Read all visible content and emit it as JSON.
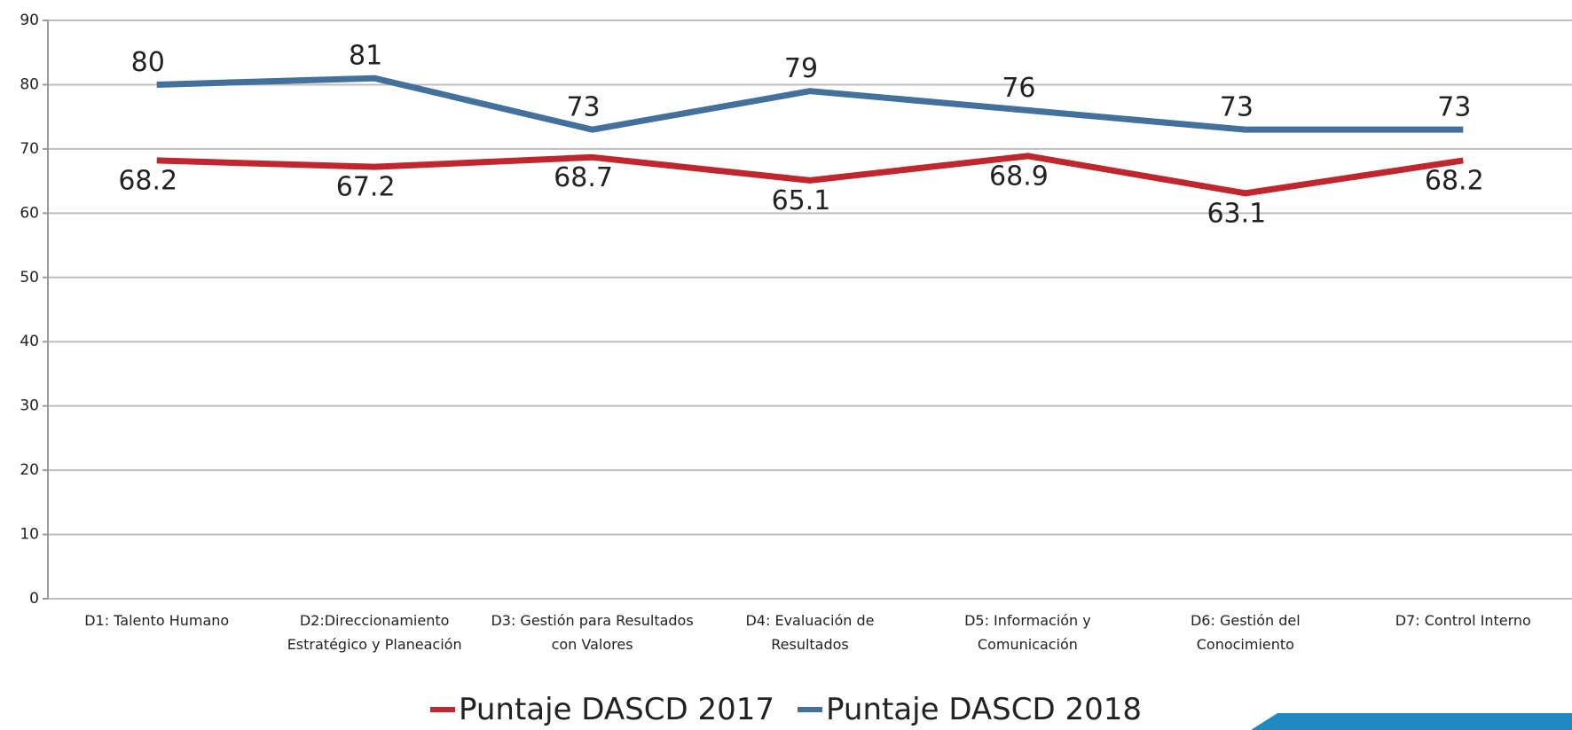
{
  "chart_data": {
    "type": "line",
    "categories": [
      "D1: Talento Humano",
      "D2:Direccionamiento Estratégico y Planeación",
      "D3: Gestión para Resultados con Valores",
      "D4: Evaluación de Resultados",
      "D5: Información y Comunicación",
      "D6: Gestión del Conocimiento",
      "D7: Control Interno"
    ],
    "series": [
      {
        "name": "Puntaje DASCD 2017",
        "color": "#c0262d",
        "values": [
          68.2,
          67.2,
          68.7,
          65.1,
          68.9,
          63.1,
          68.2
        ]
      },
      {
        "name": "Puntaje DASCD 2018",
        "color": "#44709c",
        "values": [
          80,
          81,
          73,
          79,
          76,
          73,
          73
        ]
      }
    ],
    "ylim": [
      0,
      90
    ],
    "yticks": [
      0,
      10,
      20,
      30,
      40,
      50,
      60,
      70,
      80,
      90
    ],
    "grid": true
  }
}
